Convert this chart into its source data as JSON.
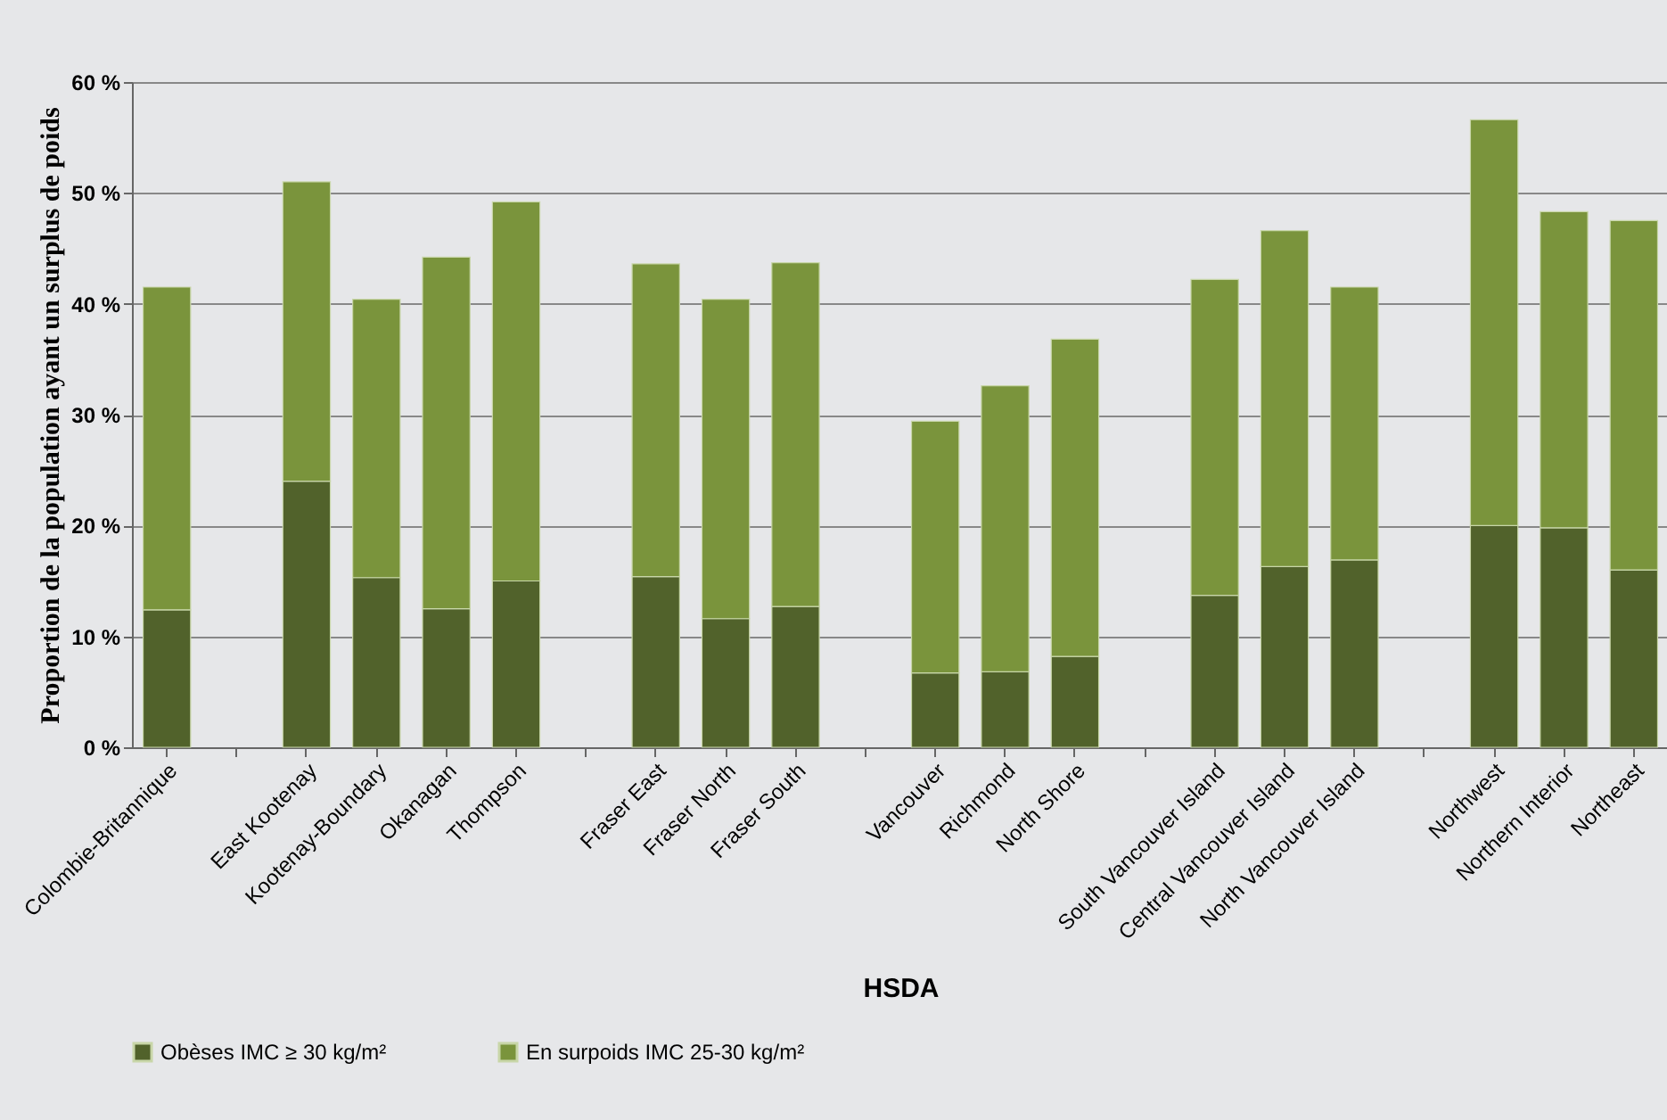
{
  "chart_data": {
    "type": "bar",
    "stacked": true,
    "ylabel": "Proportion de la population ayant un surplus de poids",
    "xlabel": "HSDA",
    "categories": [
      "Colombie-Britannique",
      null,
      "East Kootenay",
      "Kootenay-Boundary",
      "Okanagan",
      "Thompson",
      null,
      "Fraser East",
      "Fraser North",
      "Fraser South",
      null,
      "Vancouver",
      "Richmond",
      "North Shore",
      null,
      "South Vancouver Island",
      "Central Vancouver Island",
      "North Vancouver Island",
      null,
      "Northwest",
      "Northern Interior",
      "Northeast"
    ],
    "series": [
      {
        "name": "Obèses IMC ≥ 30 kg/m²",
        "color": "#51622b",
        "values": [
          12.4,
          null,
          24.0,
          15.3,
          12.5,
          15.0,
          null,
          15.4,
          11.6,
          12.7,
          null,
          6.7,
          6.8,
          8.2,
          null,
          13.7,
          16.3,
          16.9,
          null,
          20.0,
          19.8,
          16.0
        ]
      },
      {
        "name": "En surpoids IMC 25-30 kg/m²",
        "color": "#7a943c",
        "values": [
          29.1,
          null,
          27.0,
          25.1,
          31.7,
          34.2,
          null,
          28.2,
          28.8,
          31.0,
          null,
          22.7,
          25.8,
          28.6,
          null,
          28.5,
          30.3,
          24.6,
          null,
          36.6,
          28.5,
          31.5
        ]
      }
    ],
    "ylim": [
      0,
      60
    ],
    "yticks": [
      {
        "value": 0,
        "label": "0 %"
      },
      {
        "value": 10,
        "label": "10 %"
      },
      {
        "value": 20,
        "label": "20 %"
      },
      {
        "value": 30,
        "label": "30 %"
      },
      {
        "value": 40,
        "label": "40 %"
      },
      {
        "value": 50,
        "label": "50 %"
      },
      {
        "value": 60,
        "label": "60 %"
      }
    ],
    "grid": "y",
    "legend": "bottom"
  }
}
